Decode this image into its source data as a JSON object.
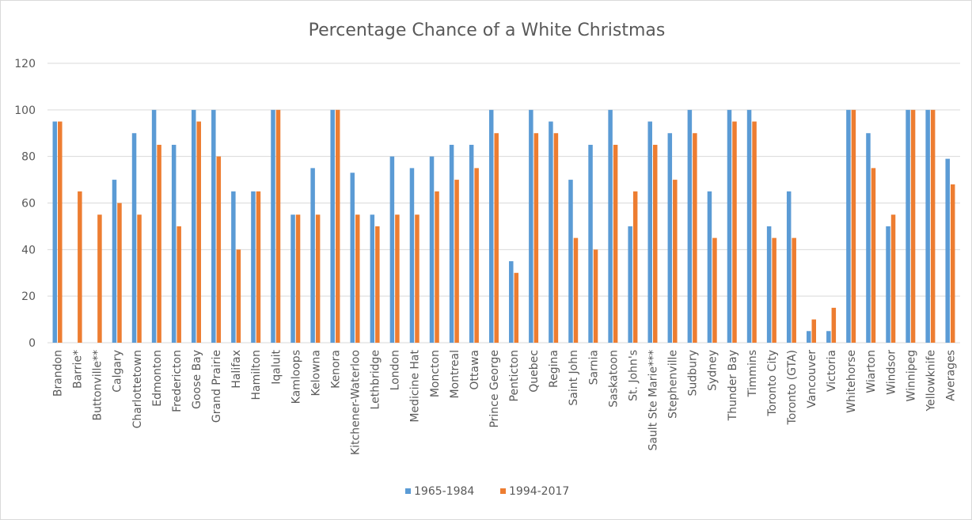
{
  "chart_data": {
    "type": "bar",
    "title": "Percentage Chance of a White Christmas",
    "xlabel": "",
    "ylabel": "",
    "ylim": [
      0,
      120
    ],
    "yticks": [
      0,
      20,
      40,
      60,
      80,
      100,
      120
    ],
    "grid": true,
    "legend_position": "bottom",
    "categories": [
      "Brandon",
      "Barrie*",
      "Buttonville**",
      "Calgary",
      "Charlottetown",
      "Edmonton",
      "Fredericton",
      "Goose Bay",
      "Grand Prairie",
      "Halifax",
      "Hamilton",
      "Iqaluit",
      "Kamloops",
      "Kelowna",
      "Kenora",
      "Kitchener-Waterloo",
      "Lethbridge",
      "London",
      "Medicine Hat",
      "Moncton",
      "Montreal",
      "Ottawa",
      "Prince George",
      "Penticton",
      "Quebec",
      "Regina",
      "Saint John",
      "Sarnia",
      "Saskatoon",
      "St. John's",
      "Sault Ste Marie***",
      "Stephenville",
      "Sudbury",
      "Sydney",
      "Thunder Bay",
      "Timmins",
      "Toronto City",
      "Toronto (GTA)",
      "Vancouver",
      "Victoria",
      "Whitehorse",
      "Wiarton",
      "Windsor",
      "Winnipeg",
      "Yellowknife",
      "Averages"
    ],
    "series": [
      {
        "name": "1965-1984",
        "color": "#5b9bd5",
        "values": [
          95,
          null,
          null,
          70,
          90,
          100,
          85,
          100,
          100,
          65,
          65,
          100,
          55,
          75,
          100,
          73,
          55,
          80,
          75,
          80,
          85,
          85,
          100,
          35,
          100,
          95,
          70,
          85,
          100,
          50,
          95,
          90,
          100,
          65,
          100,
          100,
          50,
          65,
          5,
          5,
          100,
          90,
          50,
          100,
          100,
          79
        ]
      },
      {
        "name": "1994-2017",
        "color": "#ed7d31",
        "values": [
          95,
          65,
          55,
          60,
          55,
          85,
          50,
          95,
          80,
          40,
          65,
          100,
          55,
          55,
          100,
          55,
          50,
          55,
          55,
          65,
          70,
          75,
          90,
          30,
          90,
          90,
          45,
          40,
          85,
          65,
          85,
          70,
          90,
          45,
          95,
          95,
          45,
          45,
          10,
          15,
          100,
          75,
          55,
          100,
          100,
          68
        ]
      }
    ]
  }
}
